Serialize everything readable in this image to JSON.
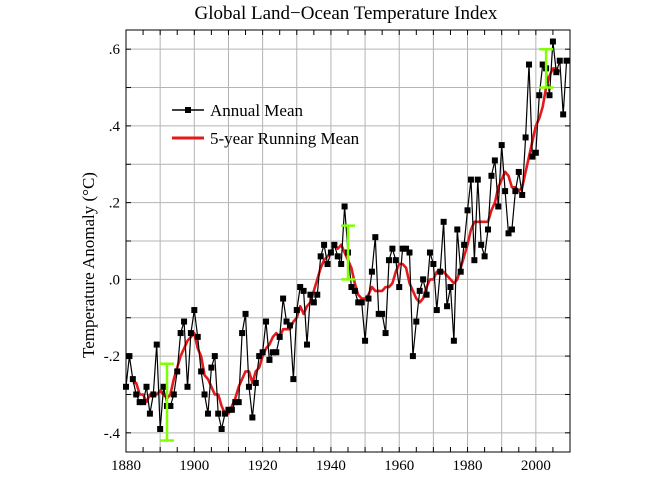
{
  "chart_data": {
    "type": "line",
    "title": "Global Land−Ocean Temperature Index",
    "ylabel": "Temperature Anomaly (°C)",
    "xlabel": "",
    "xlim": [
      1880,
      2010
    ],
    "ylim": [
      -0.45,
      0.65
    ],
    "grid": true,
    "legend_position": "top-left",
    "x_ticks": [
      {
        "value": 1880,
        "label": "1880"
      },
      {
        "value": 1900,
        "label": "1900"
      },
      {
        "value": 1920,
        "label": "1920"
      },
      {
        "value": 1940,
        "label": "1940"
      },
      {
        "value": 1960,
        "label": "1960"
      },
      {
        "value": 1980,
        "label": "1980"
      },
      {
        "value": 2000,
        "label": "2000"
      }
    ],
    "y_ticks": [
      {
        "value": -0.4,
        "label": "-.4"
      },
      {
        "value": -0.2,
        "label": "-.2"
      },
      {
        "value": 0.0,
        "label": ".0"
      },
      {
        "value": 0.2,
        "label": ".2"
      },
      {
        "value": 0.4,
        "label": ".4"
      },
      {
        "value": 0.6,
        "label": ".6"
      }
    ],
    "series": [
      {
        "name": "Annual Mean",
        "color": "#000000",
        "marker": "square",
        "x": [
          1880,
          1881,
          1882,
          1883,
          1884,
          1885,
          1886,
          1887,
          1888,
          1889,
          1890,
          1891,
          1892,
          1893,
          1894,
          1895,
          1896,
          1897,
          1898,
          1899,
          1900,
          1901,
          1902,
          1903,
          1904,
          1905,
          1906,
          1907,
          1908,
          1909,
          1910,
          1911,
          1912,
          1913,
          1914,
          1915,
          1916,
          1917,
          1918,
          1919,
          1920,
          1921,
          1922,
          1923,
          1924,
          1925,
          1926,
          1927,
          1928,
          1929,
          1930,
          1931,
          1932,
          1933,
          1934,
          1935,
          1936,
          1937,
          1938,
          1939,
          1940,
          1941,
          1942,
          1943,
          1944,
          1945,
          1946,
          1947,
          1948,
          1949,
          1950,
          1951,
          1952,
          1953,
          1954,
          1955,
          1956,
          1957,
          1958,
          1959,
          1960,
          1961,
          1962,
          1963,
          1964,
          1965,
          1966,
          1967,
          1968,
          1969,
          1970,
          1971,
          1972,
          1973,
          1974,
          1975,
          1976,
          1977,
          1978,
          1979,
          1980,
          1981,
          1982,
          1983,
          1984,
          1985,
          1986,
          1987,
          1988,
          1989,
          1990,
          1991,
          1992,
          1993,
          1994,
          1995,
          1996,
          1997,
          1998,
          1999,
          2000,
          2001,
          2002,
          2003,
          2004,
          2005,
          2006,
          2007,
          2008,
          2009
        ],
        "values": [
          -0.28,
          -0.2,
          -0.26,
          -0.3,
          -0.32,
          -0.32,
          -0.28,
          -0.35,
          -0.3,
          -0.17,
          -0.39,
          -0.28,
          -0.33,
          -0.33,
          -0.3,
          -0.24,
          -0.14,
          -0.11,
          -0.28,
          -0.14,
          -0.08,
          -0.15,
          -0.24,
          -0.3,
          -0.35,
          -0.23,
          -0.2,
          -0.35,
          -0.39,
          -0.35,
          -0.34,
          -0.34,
          -0.32,
          -0.32,
          -0.14,
          -0.09,
          -0.28,
          -0.36,
          -0.27,
          -0.2,
          -0.19,
          -0.11,
          -0.21,
          -0.19,
          -0.19,
          -0.15,
          -0.05,
          -0.11,
          -0.12,
          -0.26,
          -0.08,
          -0.02,
          -0.03,
          -0.17,
          -0.04,
          -0.06,
          -0.04,
          0.06,
          0.09,
          0.04,
          0.07,
          0.09,
          0.06,
          0.04,
          0.19,
          0.07,
          -0.02,
          -0.03,
          -0.06,
          -0.06,
          -0.16,
          -0.05,
          0.02,
          0.11,
          -0.09,
          -0.09,
          -0.14,
          0.05,
          0.08,
          0.05,
          -0.02,
          0.08,
          0.08,
          0.07,
          -0.2,
          -0.11,
          -0.03,
          0.0,
          -0.04,
          0.07,
          0.04,
          -0.08,
          0.02,
          0.15,
          -0.07,
          -0.02,
          -0.16,
          0.13,
          0.02,
          0.09,
          0.18,
          0.26,
          0.05,
          0.26,
          0.09,
          0.06,
          0.13,
          0.27,
          0.31,
          0.19,
          0.35,
          0.23,
          0.12,
          0.13,
          0.23,
          0.28,
          0.22,
          0.37,
          0.56,
          0.32,
          0.33,
          0.48,
          0.56,
          0.55,
          0.48,
          0.62,
          0.54,
          0.57,
          0.43,
          0.57
        ]
      },
      {
        "name": "5-year Running Mean",
        "color": "#e41a1c",
        "marker": "none",
        "x": [
          1882,
          1883,
          1884,
          1885,
          1886,
          1887,
          1888,
          1889,
          1890,
          1891,
          1892,
          1893,
          1894,
          1895,
          1896,
          1897,
          1898,
          1899,
          1900,
          1901,
          1902,
          1903,
          1904,
          1905,
          1906,
          1907,
          1908,
          1909,
          1910,
          1911,
          1912,
          1913,
          1914,
          1915,
          1916,
          1917,
          1918,
          1919,
          1920,
          1921,
          1922,
          1923,
          1924,
          1925,
          1926,
          1927,
          1928,
          1929,
          1930,
          1931,
          1932,
          1933,
          1934,
          1935,
          1936,
          1937,
          1938,
          1939,
          1940,
          1941,
          1942,
          1943,
          1944,
          1945,
          1946,
          1947,
          1948,
          1949,
          1950,
          1951,
          1952,
          1953,
          1954,
          1955,
          1956,
          1957,
          1958,
          1959,
          1960,
          1961,
          1962,
          1963,
          1964,
          1965,
          1966,
          1967,
          1968,
          1969,
          1970,
          1971,
          1972,
          1973,
          1974,
          1975,
          1976,
          1977,
          1978,
          1979,
          1980,
          1981,
          1982,
          1983,
          1984,
          1985,
          1986,
          1987,
          1988,
          1989,
          1990,
          1991,
          1992,
          1993,
          1994,
          1995,
          1996,
          1997,
          1998,
          1999,
          2000,
          2001,
          2002,
          2003,
          2004,
          2005,
          2006,
          2007
        ],
        "values": [
          -0.27,
          -0.27,
          -0.3,
          -0.3,
          -0.32,
          -0.3,
          -0.3,
          -0.3,
          -0.29,
          -0.3,
          -0.31,
          -0.3,
          -0.26,
          -0.23,
          -0.2,
          -0.18,
          -0.16,
          -0.15,
          -0.14,
          -0.18,
          -0.2,
          -0.25,
          -0.26,
          -0.28,
          -0.3,
          -0.3,
          -0.33,
          -0.35,
          -0.35,
          -0.33,
          -0.31,
          -0.28,
          -0.26,
          -0.24,
          -0.24,
          -0.27,
          -0.24,
          -0.23,
          -0.2,
          -0.18,
          -0.17,
          -0.15,
          -0.14,
          -0.15,
          -0.13,
          -0.13,
          -0.13,
          -0.11,
          -0.1,
          -0.07,
          -0.09,
          -0.07,
          -0.06,
          -0.03,
          0.0,
          0.03,
          0.05,
          0.06,
          0.07,
          0.09,
          0.08,
          0.09,
          0.07,
          0.05,
          0.03,
          -0.01,
          -0.04,
          -0.05,
          -0.05,
          -0.04,
          -0.02,
          -0.03,
          -0.03,
          -0.03,
          -0.02,
          -0.02,
          -0.01,
          0.02,
          0.04,
          0.04,
          0.03,
          -0.01,
          -0.03,
          -0.05,
          -0.06,
          -0.05,
          -0.02,
          0.0,
          0.0,
          0.02,
          0.02,
          0.02,
          0.01,
          0.0,
          -0.01,
          0.0,
          0.03,
          0.06,
          0.09,
          0.13,
          0.15,
          0.15,
          0.15,
          0.15,
          0.15,
          0.18,
          0.2,
          0.24,
          0.26,
          0.28,
          0.27,
          0.24,
          0.24,
          0.23,
          0.24,
          0.28,
          0.32,
          0.36,
          0.4,
          0.42,
          0.45,
          0.5,
          0.53,
          0.55,
          0.55,
          0.54
        ]
      }
    ],
    "error_bars": [
      {
        "x": 1892,
        "low": -0.42,
        "high": -0.22,
        "color": "#7fff00"
      },
      {
        "x": 1945,
        "low": 0.0,
        "high": 0.14,
        "color": "#7fff00"
      },
      {
        "x": 2003,
        "low": 0.5,
        "high": 0.6,
        "color": "#7fff00"
      }
    ]
  }
}
